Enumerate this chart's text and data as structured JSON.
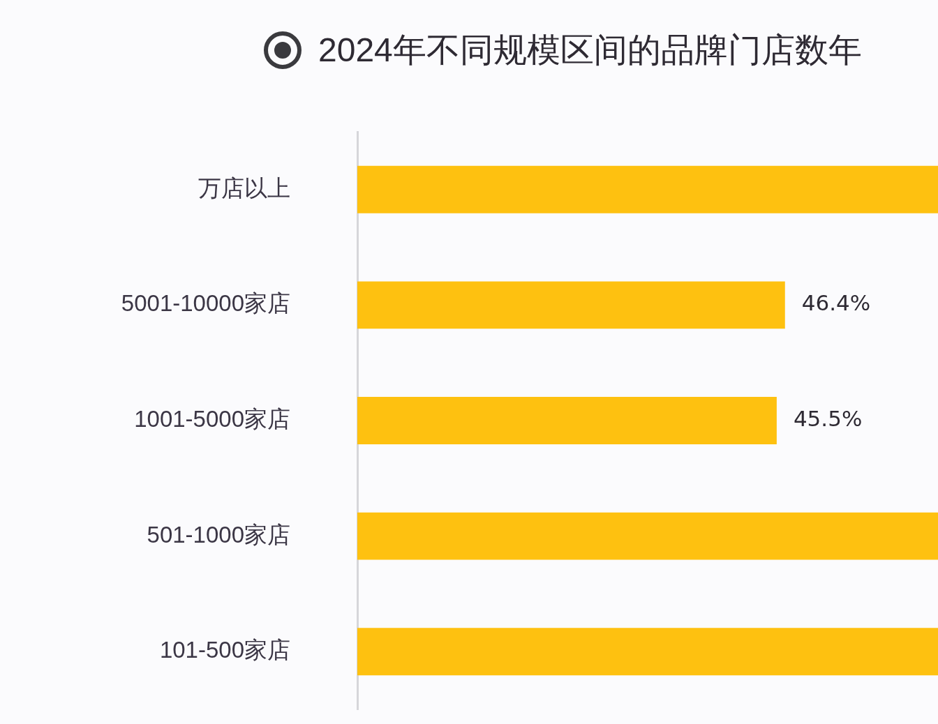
{
  "chart_data": {
    "type": "bar",
    "orientation": "horizontal",
    "title": "2024年不同规模区间的品牌门店数年",
    "categories": [
      "万店以上",
      "5001-10000家店",
      "1001-5000家店",
      "501-1000家店",
      "101-500家店"
    ],
    "values": [
      63,
      46.4,
      45.5,
      63,
      63
    ],
    "value_labels": [
      null,
      "46.4%",
      "45.5%",
      null,
      null
    ],
    "color": "#fec110",
    "xlim": [
      0,
      63
    ],
    "tick_labels": "y",
    "grid": false,
    "legend": false
  }
}
